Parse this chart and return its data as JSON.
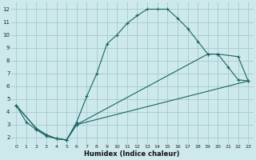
{
  "xlabel": "Humidex (Indice chaleur)",
  "background_color": "#cee9ec",
  "grid_color": "#aacdd1",
  "line_color": "#1a6464",
  "xlim": [
    -0.5,
    23.5
  ],
  "ylim": [
    1.5,
    12.5
  ],
  "xticks": [
    0,
    1,
    2,
    3,
    4,
    5,
    6,
    7,
    8,
    9,
    10,
    11,
    12,
    13,
    14,
    15,
    16,
    17,
    18,
    19,
    20,
    21,
    22,
    23
  ],
  "yticks": [
    2,
    3,
    4,
    5,
    6,
    7,
    8,
    9,
    10,
    11,
    12
  ],
  "line1_x": [
    0,
    1,
    2,
    3,
    4,
    5,
    6,
    7,
    8,
    9,
    10,
    11,
    12,
    13,
    14,
    15,
    16,
    17,
    18,
    19,
    20,
    21,
    22,
    23
  ],
  "line1_y": [
    4.5,
    3.2,
    2.6,
    2.1,
    1.9,
    1.8,
    3.2,
    5.2,
    7.0,
    9.3,
    10.0,
    10.9,
    11.5,
    12.0,
    12.0,
    12.0,
    11.3,
    10.5,
    9.5,
    8.5,
    8.5,
    7.5,
    6.5,
    6.4
  ],
  "line2_x": [
    0,
    2,
    3,
    4,
    5,
    6,
    23
  ],
  "line2_y": [
    4.5,
    2.7,
    2.2,
    1.9,
    1.8,
    3.0,
    6.4
  ],
  "line3_x": [
    0,
    2,
    3,
    4,
    5,
    6,
    19,
    20,
    22,
    23
  ],
  "line3_y": [
    4.5,
    2.7,
    2.2,
    1.9,
    1.8,
    3.0,
    8.5,
    8.5,
    8.3,
    6.4
  ]
}
